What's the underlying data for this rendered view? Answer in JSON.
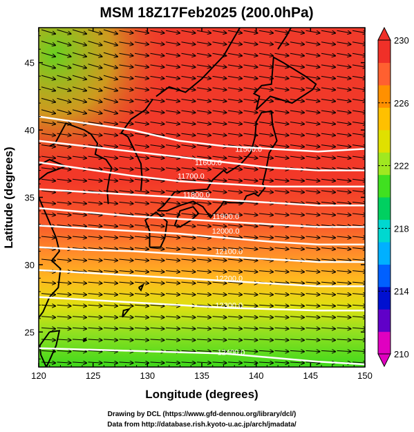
{
  "title": "MSM 18Z17Feb2025 (200.0hPa)",
  "x_axis": {
    "label": "Longitude (degrees)",
    "range": [
      120,
      150
    ],
    "ticks": [
      "120",
      "125",
      "130",
      "135",
      "140",
      "145",
      "150"
    ]
  },
  "y_axis": {
    "label": "Latitude  (degrees)",
    "range": [
      22.4,
      47.6
    ],
    "ticks": [
      "25",
      "30",
      "35",
      "40",
      "45"
    ]
  },
  "colorbar": {
    "range": [
      210,
      230
    ],
    "tick_labels": [
      "230",
      "226",
      "222",
      "218",
      "214",
      "210"
    ],
    "colors": [
      "#e000c0",
      "#6000c8",
      "#0010d0",
      "#0060ff",
      "#00b0ff",
      "#00d8d0",
      "#00d060",
      "#40e020",
      "#a0e820",
      "#e0e000",
      "#ffc000",
      "#ff9000",
      "#ff6030",
      "#f03028"
    ]
  },
  "contours": {
    "color": "#ffffff",
    "labels": [
      {
        "text": "11500.0",
        "lon": 139.3,
        "lat": 38.6
      },
      {
        "text": "11600.0",
        "lon": 135.6,
        "lat": 37.6
      },
      {
        "text": "11700.0",
        "lon": 134.0,
        "lat": 36.6
      },
      {
        "text": "11800.0",
        "lon": 134.5,
        "lat": 35.2
      },
      {
        "text": "11900.0",
        "lon": 137.2,
        "lat": 33.6
      },
      {
        "text": "12000.0",
        "lon": 137.2,
        "lat": 32.5
      },
      {
        "text": "12100.0",
        "lon": 137.5,
        "lat": 31.0
      },
      {
        "text": "12200.0",
        "lon": 137.5,
        "lat": 29.0
      },
      {
        "text": "12300.0",
        "lon": 137.5,
        "lat": 27.0
      },
      {
        "text": "12400.0",
        "lon": 137.7,
        "lat": 23.5
      }
    ]
  },
  "credits": [
    "Drawing by DCL (https://www.gfd-dennou.org/library/dcl/)",
    "Data from http://database.rish.kyoto-u.ac.jp/arch/jmadata/"
  ]
}
